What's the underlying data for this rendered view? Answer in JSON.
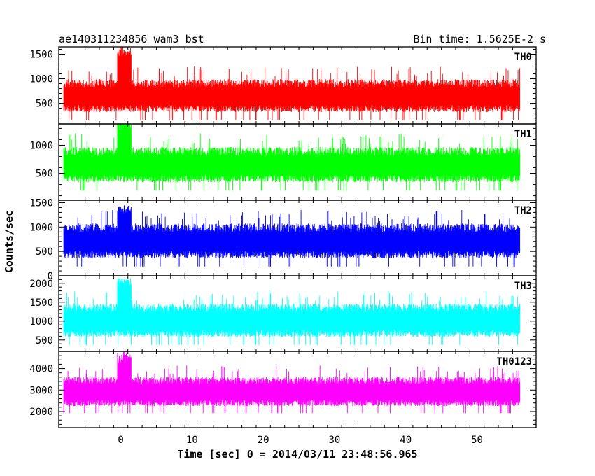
{
  "chart_data": {
    "type": "line",
    "title_left": "ae140311234856_wam3_bst",
    "title_right": "Bin time: 1.5625E-2 s",
    "xlabel": "Time [sec] 0 = 2014/03/11 23:48:56.965",
    "ylabel": "Counts/sec",
    "xlim": [
      -8.7,
      58.3
    ],
    "x_ticks": [
      0,
      10,
      20,
      30,
      40,
      50
    ],
    "data_x_range": [
      -8.0,
      56.0
    ],
    "panels": [
      {
        "name": "TH0",
        "color": "#ff0000",
        "ylim": [
          80,
          1650
        ],
        "y_ticks": [
          500,
          1000,
          1500
        ],
        "baseline": 640,
        "spread": 320,
        "burst_peak": 1650
      },
      {
        "name": "TH1",
        "color": "#00ff00",
        "ylim": [
          20,
          1380
        ],
        "y_ticks": [
          500,
          1000
        ],
        "baseline": 640,
        "spread": 300,
        "burst_peak": 1450
      },
      {
        "name": "TH2",
        "color": "#0000ff",
        "ylim": [
          0,
          1550
        ],
        "y_ticks": [
          0,
          500,
          1000,
          1500
        ],
        "baseline": 700,
        "spread": 340,
        "burst_peak": 1450
      },
      {
        "name": "TH3",
        "color": "#00ffff",
        "ylim": [
          200,
          2200
        ],
        "y_ticks": [
          500,
          1000,
          1500,
          2000
        ],
        "baseline": 1000,
        "spread": 420,
        "burst_peak": 2150
      },
      {
        "name": "TH0123",
        "color": "#ff00ff",
        "ylim": [
          1250,
          4800
        ],
        "y_ticks": [
          2000,
          3000,
          4000
        ],
        "baseline": 2900,
        "spread": 650,
        "burst_peak": 4800
      }
    ]
  }
}
